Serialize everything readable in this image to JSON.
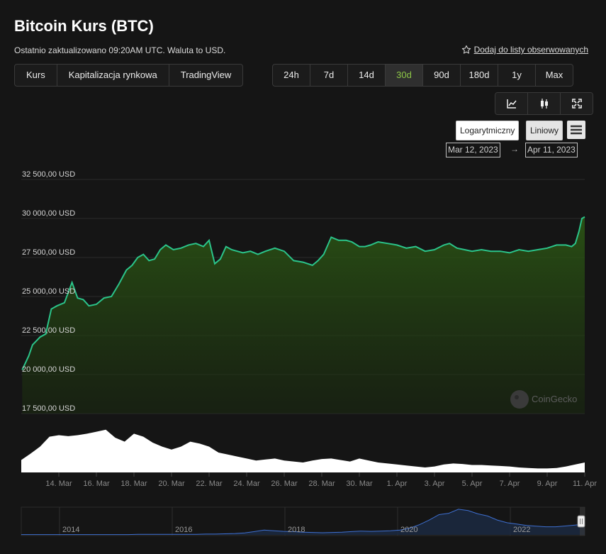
{
  "header": {
    "title": "Bitcoin Kurs (BTC)",
    "subtitle": "Ostatnio zaktualizowano 09:20AM UTC. Waluta to USD.",
    "watchlist": "Dodaj do listy obserwowanych"
  },
  "view_tabs": [
    "Kurs",
    "Kapitalizacja rynkowa",
    "TradingView"
  ],
  "active_view": 0,
  "range_tabs": [
    "24h",
    "7d",
    "14d",
    "30d",
    "90d",
    "180d",
    "1y",
    "Max"
  ],
  "active_range": 3,
  "chart_icons": [
    "line-chart-icon",
    "candlestick-icon",
    "fullscreen-icon"
  ],
  "scale": {
    "log": "Logarytmiczny",
    "linear": "Liniowy",
    "active": "linear"
  },
  "date_range": {
    "from": "Mar 12, 2023",
    "arrow": "→",
    "to": "Apr 11, 2023"
  },
  "watermark": "CoinGecko",
  "colors": {
    "line": "#2bc48a",
    "accent": "#8dc647",
    "background": "#151515",
    "volume": "#ffffff",
    "navigator": "#3e6fd0"
  },
  "chart_data": {
    "type": "area",
    "title": "",
    "xlabel": "",
    "ylabel": "",
    "ylim": [
      17500,
      32500
    ],
    "y_ticks": [
      "32 500,00 USD",
      "30 000,00 USD",
      "27 500,00 USD",
      "25 000,00 USD",
      "22 500,00 USD",
      "20 000,00 USD",
      "17 500,00 USD"
    ],
    "y_tick_values": [
      32500,
      30000,
      27500,
      25000,
      22500,
      20000,
      17500
    ],
    "x_ticks": [
      "14. Mar",
      "16. Mar",
      "18. Mar",
      "20. Mar",
      "22. Mar",
      "24. Mar",
      "26. Mar",
      "28. Mar",
      "30. Mar",
      "1. Apr",
      "3. Apr",
      "5. Apr",
      "7. Apr",
      "9. Apr",
      "11. Apr"
    ],
    "x_tick_days": [
      2,
      4,
      6,
      8,
      10,
      12,
      14,
      16,
      18,
      20,
      22,
      24,
      26,
      28,
      30
    ],
    "x_range_days": [
      0,
      30
    ],
    "series": [
      {
        "x_days": [
          0.05,
          0.4,
          0.6,
          1.0,
          1.3,
          1.6,
          1.9,
          2.3,
          2.7,
          3.0,
          3.3,
          3.6,
          4.0,
          4.4,
          4.8,
          5.2,
          5.6,
          5.9,
          6.2,
          6.5,
          6.8,
          7.1,
          7.4,
          7.7,
          8.1,
          8.5,
          8.9,
          9.3,
          9.7,
          10.0,
          10.3,
          10.6,
          10.9,
          11.2,
          11.5,
          11.8,
          12.2,
          12.6,
          13.0,
          13.5,
          14.0,
          14.5,
          15.0,
          15.5,
          15.8,
          16.1,
          16.5,
          16.9,
          17.3,
          17.6,
          18.0,
          18.3,
          18.6,
          19.0,
          19.5,
          20.0,
          20.5,
          21.0,
          21.5,
          22.0,
          22.5,
          22.8,
          23.2,
          23.6,
          24.0,
          24.5,
          25.0,
          25.5,
          26.0,
          26.5,
          27.0,
          27.5,
          28.0,
          28.5,
          29.0,
          29.3,
          29.5,
          29.7,
          29.85,
          30.0
        ],
        "y_usd": [
          20300,
          21200,
          21900,
          22400,
          22600,
          24200,
          24400,
          24600,
          25900,
          24900,
          24800,
          24400,
          24500,
          24900,
          25000,
          25800,
          26700,
          27000,
          27500,
          27700,
          27300,
          27400,
          28000,
          28300,
          28000,
          28100,
          28300,
          28400,
          28200,
          28600,
          27100,
          27400,
          28200,
          28000,
          27900,
          27800,
          27900,
          27700,
          27900,
          28100,
          27900,
          27300,
          27200,
          27000,
          27300,
          27700,
          28800,
          28600,
          28600,
          28500,
          28200,
          28200,
          28300,
          28500,
          28400,
          28300,
          28100,
          28200,
          27900,
          28000,
          28300,
          28400,
          28100,
          28000,
          27900,
          28000,
          27900,
          27900,
          27800,
          28000,
          27900,
          28000,
          28100,
          28300,
          28300,
          28200,
          28400,
          29200,
          30000,
          30100
        ]
      }
    ]
  },
  "volume_chart": {
    "x_days": [
      0.0,
      0.5,
      1.0,
      1.5,
      2.0,
      2.5,
      3.0,
      3.5,
      4.0,
      4.5,
      5.0,
      5.5,
      6.0,
      6.5,
      7.0,
      7.5,
      8.0,
      8.5,
      9.0,
      9.5,
      10.0,
      10.5,
      11.0,
      11.5,
      12.0,
      12.5,
      13.0,
      13.5,
      14.0,
      14.5,
      15.0,
      15.5,
      16.0,
      16.5,
      17.0,
      17.5,
      18.0,
      18.5,
      19.0,
      19.5,
      20.0,
      20.5,
      21.0,
      21.5,
      22.0,
      22.5,
      23.0,
      23.5,
      24.0,
      24.5,
      25.0,
      25.5,
      26.0,
      26.5,
      27.0,
      27.5,
      28.0,
      28.5,
      29.0,
      29.5,
      30.0
    ],
    "relative": [
      0.25,
      0.38,
      0.52,
      0.72,
      0.75,
      0.73,
      0.75,
      0.78,
      0.82,
      0.86,
      0.7,
      0.62,
      0.78,
      0.72,
      0.6,
      0.52,
      0.46,
      0.52,
      0.62,
      0.58,
      0.52,
      0.4,
      0.36,
      0.32,
      0.28,
      0.24,
      0.26,
      0.28,
      0.24,
      0.22,
      0.2,
      0.24,
      0.27,
      0.28,
      0.25,
      0.22,
      0.28,
      0.24,
      0.2,
      0.18,
      0.16,
      0.14,
      0.12,
      0.1,
      0.12,
      0.16,
      0.18,
      0.17,
      0.15,
      0.15,
      0.14,
      0.13,
      0.12,
      0.1,
      0.09,
      0.08,
      0.08,
      0.09,
      0.12,
      0.16,
      0.2
    ]
  },
  "navigator": {
    "x_labels": [
      "2014",
      "2016",
      "2018",
      "2020",
      "2022"
    ],
    "relative": [
      0.01,
      0.01,
      0.01,
      0.01,
      0.01,
      0.01,
      0.01,
      0.01,
      0.01,
      0.01,
      0.01,
      0.01,
      0.02,
      0.02,
      0.02,
      0.02,
      0.02,
      0.02,
      0.02,
      0.03,
      0.03,
      0.04,
      0.05,
      0.07,
      0.12,
      0.18,
      0.15,
      0.13,
      0.12,
      0.1,
      0.09,
      0.08,
      0.09,
      0.1,
      0.12,
      0.14,
      0.13,
      0.14,
      0.15,
      0.18,
      0.25,
      0.38,
      0.55,
      0.75,
      0.8,
      0.95,
      0.9,
      0.78,
      0.7,
      0.55,
      0.45,
      0.4,
      0.35,
      0.32,
      0.3,
      0.3,
      0.33,
      0.36,
      0.4
    ]
  }
}
